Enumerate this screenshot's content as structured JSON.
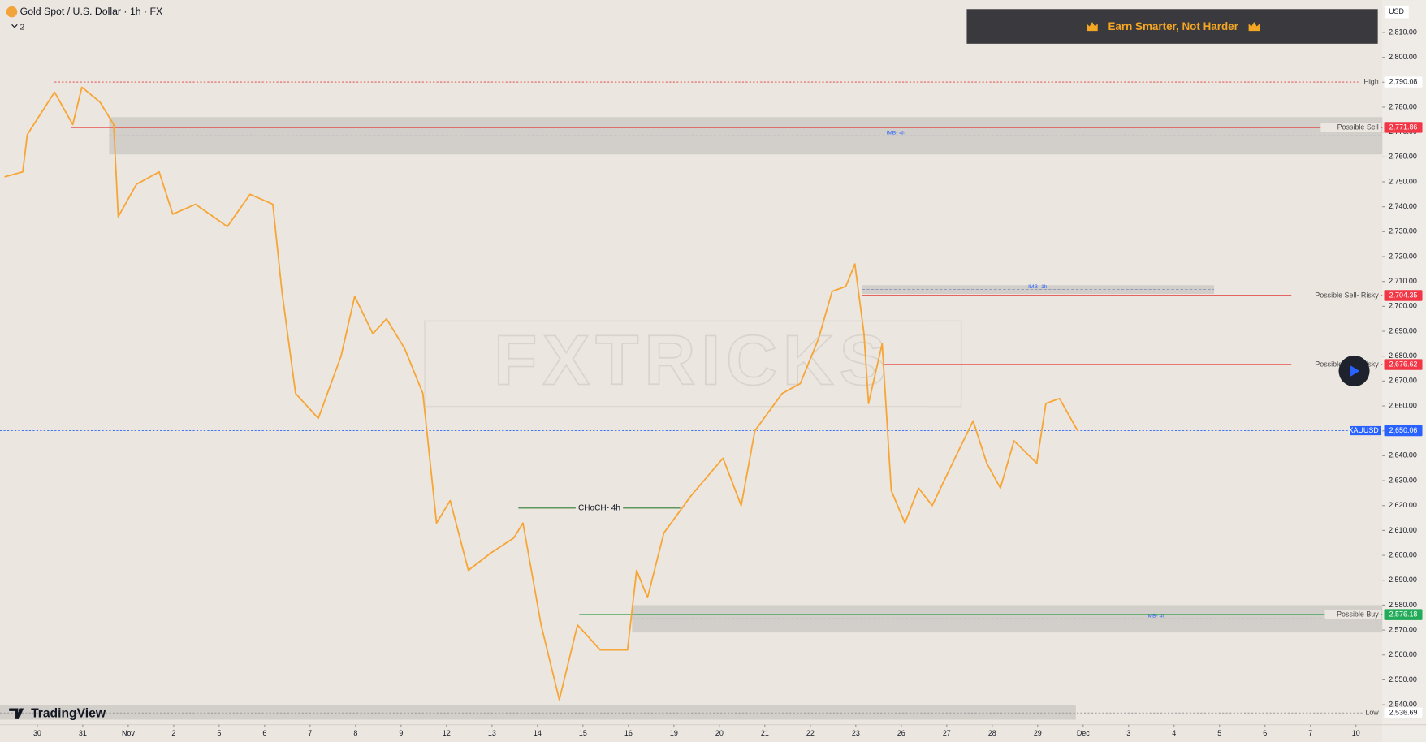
{
  "header": {
    "title": "Gold Spot / U.S. Dollar · 1h · FX",
    "indicator_count": "2",
    "banner": "Earn Smarter, Not Harder",
    "currency": "USD",
    "watermark": "FXTRICKS",
    "brand": "TradingView"
  },
  "chart_data": {
    "type": "line",
    "color": "#f7a534",
    "x": [
      -0.72,
      -0.32,
      -0.22,
      0.38,
      0.78,
      0.98,
      1.38,
      1.68,
      1.78,
      2.18,
      2.68,
      2.98,
      3.48,
      4.18,
      4.68,
      5.18,
      5.38,
      5.68,
      6.18,
      6.68,
      6.98,
      7.38,
      7.68,
      8.08,
      8.48,
      8.78,
      9.08,
      9.48,
      9.98,
      10.48,
      10.68,
      11.08,
      11.48,
      11.88,
      12.38,
      12.98,
      13.18,
      13.42,
      13.78,
      14.38,
      15.08,
      15.48,
      15.78,
      16.38,
      16.78,
      17.18,
      17.48,
      17.78,
      17.98,
      18.18,
      18.28,
      18.58,
      18.78,
      19.08,
      19.38,
      19.68,
      20.18,
      20.58,
      20.88,
      21.18,
      21.48,
      21.98,
      22.18,
      22.48,
      22.88
    ],
    "values": [
      2752,
      2754,
      2769,
      2786,
      2773,
      2788,
      2782,
      2773,
      2736,
      2749,
      2754,
      2737,
      2741,
      2732,
      2745,
      2741,
      2706,
      2665,
      2655,
      2680,
      2704,
      2689,
      2695,
      2683,
      2665,
      2613,
      2622,
      2594,
      2601,
      2607,
      2613,
      2572,
      2542,
      2572,
      2562,
      2562,
      2594,
      2583,
      2609,
      2624,
      2639,
      2620,
      2650,
      2665,
      2669,
      2687,
      2706,
      2708,
      2717,
      2689,
      2661,
      2685,
      2626,
      2613,
      2627,
      2620,
      2639,
      2654,
      2637,
      2627,
      2646,
      2637,
      2661,
      2663,
      2650
    ],
    "xlim": [
      -0.82,
      29.58
    ],
    "xticks": [
      {
        "value": 0,
        "label": "30"
      },
      {
        "value": 1,
        "label": "31"
      },
      {
        "value": 2,
        "label": "Nov"
      },
      {
        "value": 3,
        "label": "2"
      },
      {
        "value": 4,
        "label": "5"
      },
      {
        "value": 5,
        "label": "6"
      },
      {
        "value": 6,
        "label": "7"
      },
      {
        "value": 7,
        "label": "8"
      },
      {
        "value": 8,
        "label": "9"
      },
      {
        "value": 9,
        "label": "12"
      },
      {
        "value": 10,
        "label": "13"
      },
      {
        "value": 11,
        "label": "14"
      },
      {
        "value": 12,
        "label": "15"
      },
      {
        "value": 13,
        "label": "16"
      },
      {
        "value": 14,
        "label": "19"
      },
      {
        "value": 15,
        "label": "20"
      },
      {
        "value": 16,
        "label": "21"
      },
      {
        "value": 17,
        "label": "22"
      },
      {
        "value": 18,
        "label": "23"
      },
      {
        "value": 19,
        "label": "26"
      },
      {
        "value": 20,
        "label": "27"
      },
      {
        "value": 21,
        "label": "28"
      },
      {
        "value": 22,
        "label": "29"
      },
      {
        "value": 23,
        "label": "Dec"
      },
      {
        "value": 24,
        "label": "3"
      },
      {
        "value": 25,
        "label": "4"
      },
      {
        "value": 26,
        "label": "5"
      },
      {
        "value": 27,
        "label": "6"
      },
      {
        "value": 28,
        "label": "7"
      },
      {
        "value": 29,
        "label": "10"
      }
    ],
    "ylim": [
      2532,
      2823
    ],
    "yticks": [
      {
        "value": 2540,
        "label": "2,540.00"
      },
      {
        "value": 2550,
        "label": "2,550.00"
      },
      {
        "value": 2560,
        "label": "2,560.00"
      },
      {
        "value": 2570,
        "label": "2,570.00"
      },
      {
        "value": 2580,
        "label": "2,580.00"
      },
      {
        "value": 2590,
        "label": "2,590.00"
      },
      {
        "value": 2600,
        "label": "2,600.00"
      },
      {
        "value": 2610,
        "label": "2,610.00"
      },
      {
        "value": 2620,
        "label": "2,620.00"
      },
      {
        "value": 2630,
        "label": "2,630.00"
      },
      {
        "value": 2640,
        "label": "2,640.00"
      },
      {
        "value": 2650,
        "label": "2,650.00"
      },
      {
        "value": 2660,
        "label": "2,660.00"
      },
      {
        "value": 2670,
        "label": "2,670.00"
      },
      {
        "value": 2680,
        "label": "2,680.00"
      },
      {
        "value": 2690,
        "label": "2,690.00"
      },
      {
        "value": 2700,
        "label": "2,700.00"
      },
      {
        "value": 2710,
        "label": "2,710.00"
      },
      {
        "value": 2720,
        "label": "2,720.00"
      },
      {
        "value": 2730,
        "label": "2,730.00"
      },
      {
        "value": 2740,
        "label": "2,740.00"
      },
      {
        "value": 2750,
        "label": "2,750.00"
      },
      {
        "value": 2760,
        "label": "2,760.00"
      },
      {
        "value": 2770,
        "label": "2,770.00"
      },
      {
        "value": 2780,
        "label": "2,780.00"
      },
      {
        "value": 2790,
        "label": "2,790.00"
      },
      {
        "value": 2800,
        "label": "2,800.00"
      },
      {
        "value": 2810,
        "label": "2,810.00"
      }
    ],
    "zones": [
      {
        "x0": 1.58,
        "x1": 29.58,
        "top": 2776,
        "bottom": 2761,
        "label": "IMB- 4h",
        "label_x": 18.88
      },
      {
        "x0": 18.14,
        "x1": 25.88,
        "top": 2708.5,
        "bottom": 2705,
        "label": "IMB- 1h",
        "label_x": 22.0
      },
      {
        "x0": 13.08,
        "x1": 29.58,
        "top": 2580,
        "bottom": 2569,
        "label": "IMB- 4h",
        "label_x": 24.6
      },
      {
        "x0": -0.82,
        "x1": 22.84,
        "top": 2540,
        "bottom": 2534
      }
    ],
    "levels": [
      {
        "label": "High",
        "value": 2790.08,
        "value_label": "2,790.08",
        "x0": 0.38,
        "color": "#e53935",
        "box": "#ffffff"
      },
      {
        "label": "Possible Sell",
        "value": 2771.86,
        "value_label": "2,771.86",
        "x0": 0.74,
        "color": "#e53935",
        "box": "#f23645"
      },
      {
        "label": "Possible Sell- Risky",
        "value": 2704.35,
        "value_label": "2,704.35",
        "x0": 18.14,
        "color": "#e53935",
        "box": "#f23645"
      },
      {
        "label": "Possible Sell- Risky",
        "value": 2676.62,
        "value_label": "2,676.62",
        "x0": 18.62,
        "color": "#e53935",
        "box": "#f23645"
      },
      {
        "label": "XAUUSD",
        "value": 2650.06,
        "value_label": "2,650.06",
        "x0": -0.82,
        "color": "#2962ff",
        "box": "#2962ff"
      },
      {
        "label": "Possible Buy",
        "value": 2576.18,
        "value_label": "2,576.18",
        "x0": 11.92,
        "color": "#2e9e47",
        "box": "#22ab59"
      },
      {
        "label": "Low",
        "value": 2536.69,
        "value_label": "2,536.69",
        "x0": -0.82,
        "color": "#9a9a9a",
        "box": "#ffffff"
      }
    ],
    "choch": {
      "label": "CHoCH- 4h",
      "value": 2619,
      "x0": 10.58,
      "x1": 14.14
    }
  }
}
